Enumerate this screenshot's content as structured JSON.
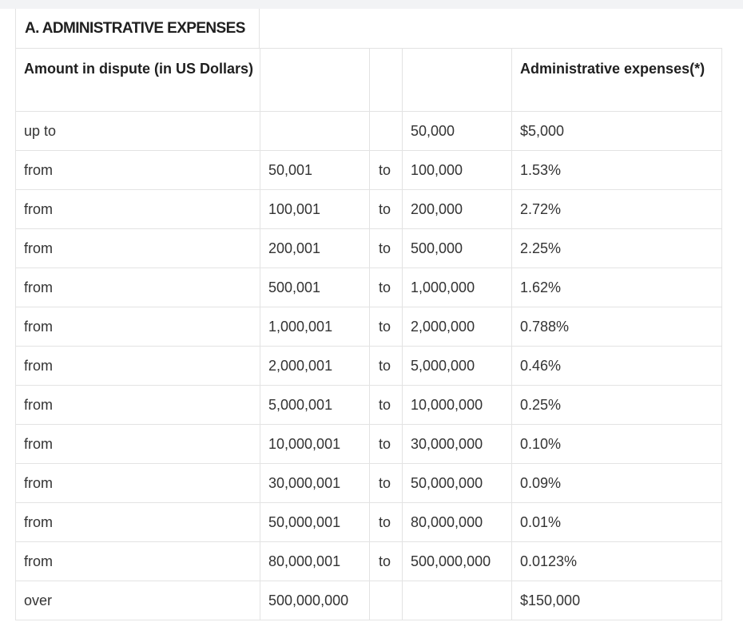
{
  "title": "A. ADMINISTRATIVE EXPENSES",
  "header": {
    "amount": "Amount in dispute (in US Dollars)",
    "from_value": "",
    "to_word": "",
    "to_value": "",
    "expenses": "Administrative expenses(*)"
  },
  "rows": [
    {
      "label": "up to",
      "from": "",
      "to": "",
      "upper": "50,000",
      "expense": "$5,000"
    },
    {
      "label": "from",
      "from": "50,001",
      "to": "to",
      "upper": "100,000",
      "expense": "1.53%"
    },
    {
      "label": "from",
      "from": "100,001",
      "to": "to",
      "upper": "200,000",
      "expense": "2.72%"
    },
    {
      "label": "from",
      "from": "200,001",
      "to": "to",
      "upper": "500,000",
      "expense": "2.25%"
    },
    {
      "label": "from",
      "from": "500,001",
      "to": "to",
      "upper": "1,000,000",
      "expense": "1.62%"
    },
    {
      "label": "from",
      "from": "1,000,001",
      "to": "to",
      "upper": "2,000,000",
      "expense": "0.788%"
    },
    {
      "label": "from",
      "from": "2,000,001",
      "to": "to",
      "upper": "5,000,000",
      "expense": "0.46%"
    },
    {
      "label": "from",
      "from": "5,000,001",
      "to": "to",
      "upper": "10,000,000",
      "expense": "0.25%"
    },
    {
      "label": "from",
      "from": "10,000,001",
      "to": "to",
      "upper": "30,000,000",
      "expense": "0.10%"
    },
    {
      "label": "from",
      "from": "30,000,001",
      "to": "to",
      "upper": "50,000,000",
      "expense": "0.09%"
    },
    {
      "label": "from",
      "from": "50,000,001",
      "to": "to",
      "upper": "80,000,000",
      "expense": "0.01%"
    },
    {
      "label": "from",
      "from": "80,000,001",
      "to": "to",
      "upper": "500,000,000",
      "expense": "0.0123%"
    },
    {
      "label": "over",
      "from": "500,000,000",
      "to": "",
      "upper": "",
      "expense": "$150,000"
    }
  ]
}
